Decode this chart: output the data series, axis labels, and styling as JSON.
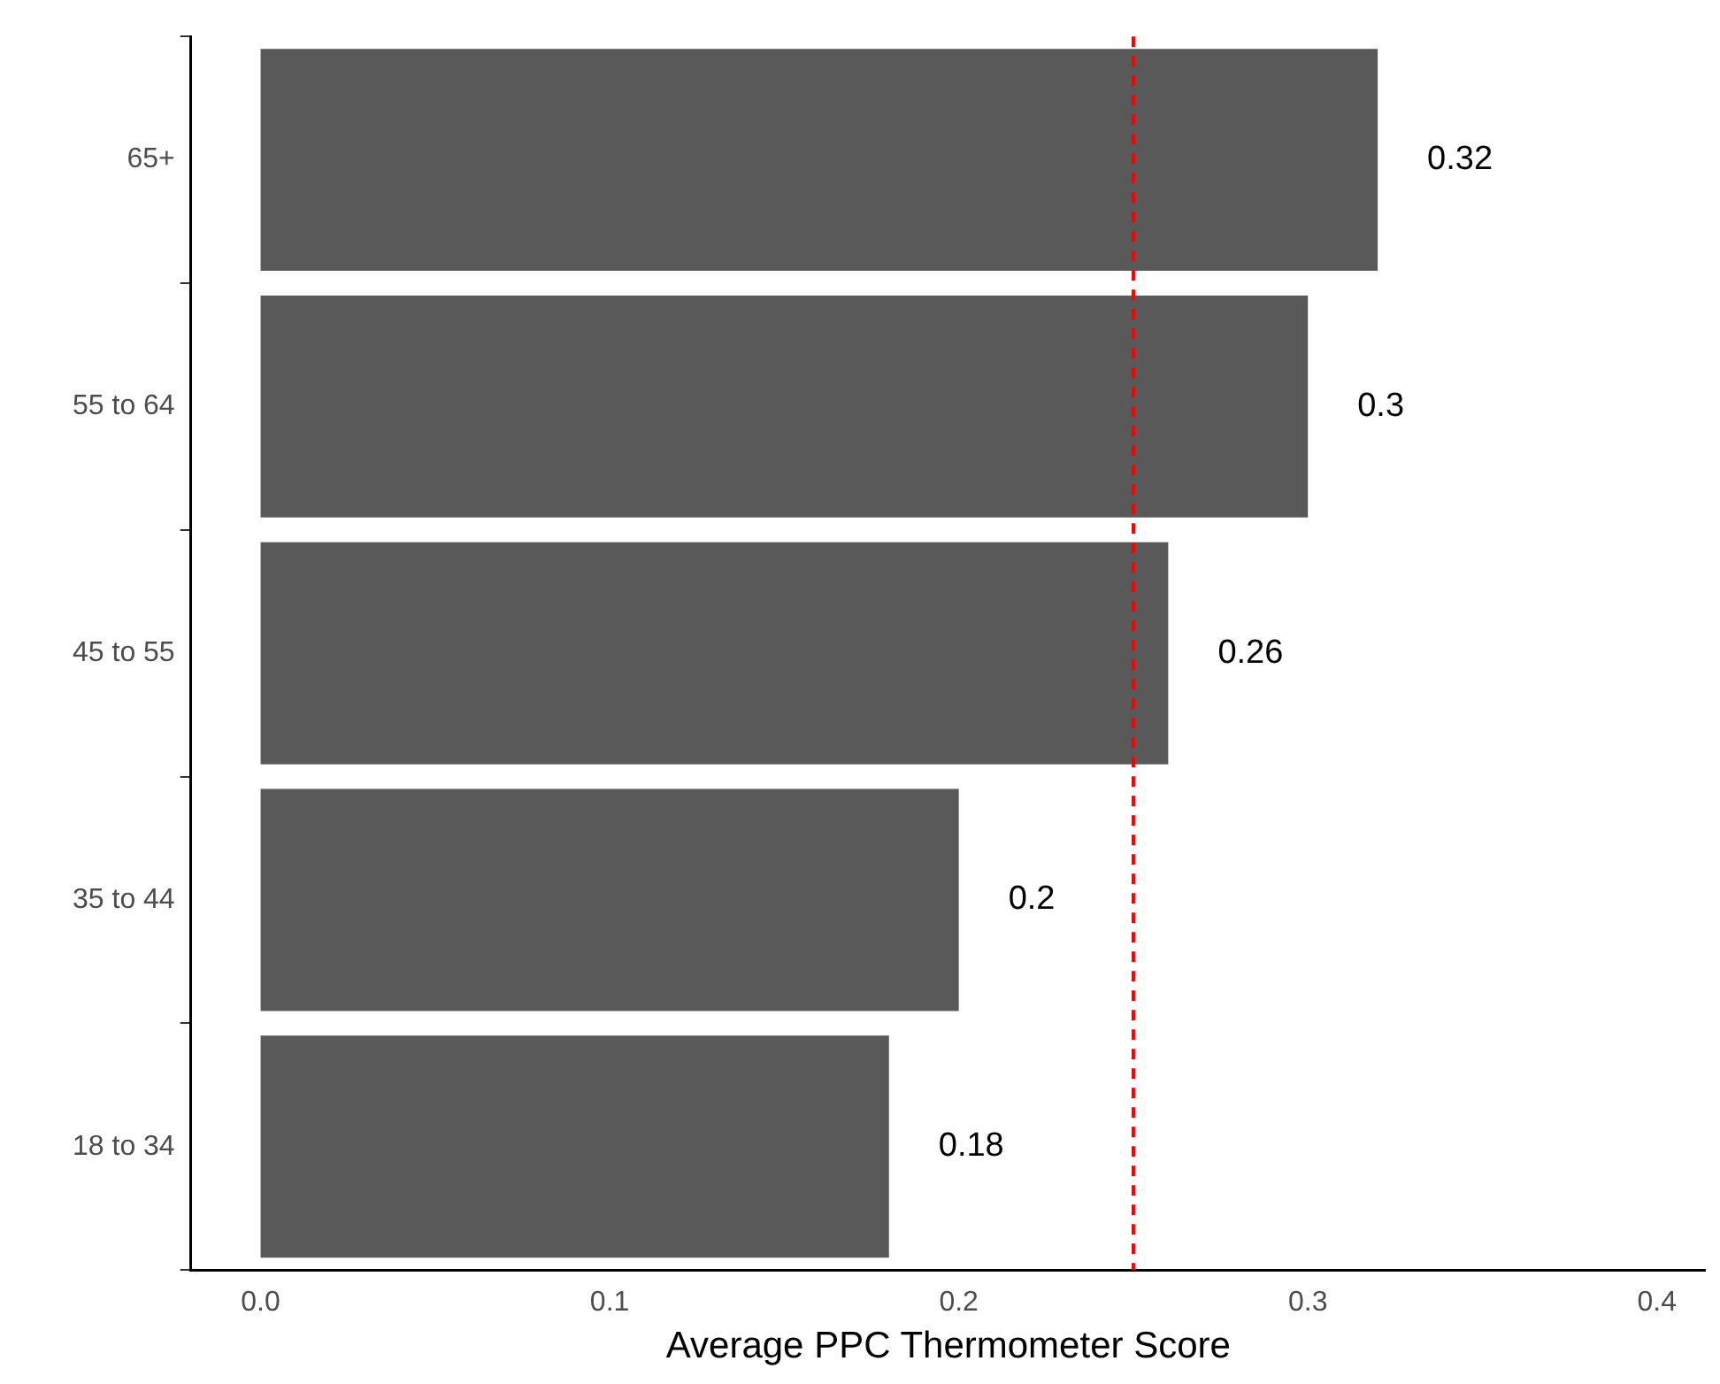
{
  "chart_data": {
    "type": "bar",
    "orientation": "horizontal",
    "xlabel": "Average PPC Thermometer Score",
    "categories": [
      "65+",
      "55 to 64",
      "45 to 55",
      "35 to 44",
      "18 to 34"
    ],
    "values": [
      0.32,
      0.3,
      0.26,
      0.2,
      0.18
    ],
    "color": "#595959",
    "data_labels": true,
    "xlim": [
      -0.02,
      0.414
    ],
    "xticks": [
      {
        "value": 0,
        "label": "0.0"
      },
      {
        "value": 0.1,
        "label": "0.1"
      },
      {
        "value": 0.2,
        "label": "0.2"
      },
      {
        "value": 0.3,
        "label": "0.3"
      },
      {
        "value": 0.4,
        "label": "0.4"
      }
    ],
    "ref_lines": [
      {
        "axis": "x",
        "value": 0.25,
        "color": "#ff0000",
        "line_style": "dashed"
      }
    ],
    "grid": false,
    "legend": false
  }
}
